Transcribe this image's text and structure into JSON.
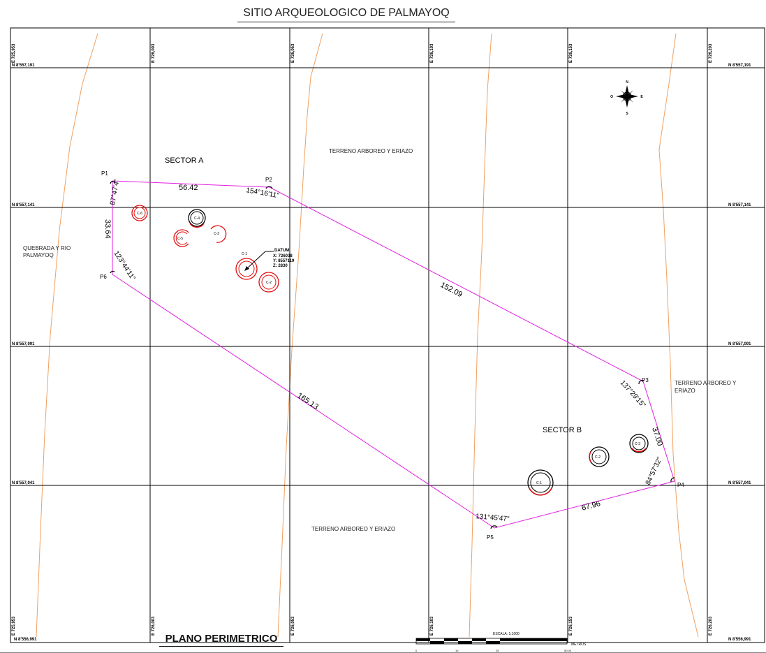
{
  "title": "SITIO ARQUEOLOGICO DE PALMAYOQ",
  "plano_title": "PLANO PERIMETRICO",
  "grid": {
    "easting_labels": [
      "E 725,953",
      "E 726,003",
      "E 726,053",
      "E 726,103",
      "E 726,153",
      "E 726,203"
    ],
    "northing_labels": [
      "N 8'557,191",
      "N 8'557,141",
      "N 8'557,091",
      "N 8'557,041",
      "N 8'556,991"
    ]
  },
  "sectors": {
    "a": "SECTOR A",
    "b": "SECTOR B"
  },
  "areas": {
    "terreno_top": "TERRENO ARBOREO Y ERIAZO",
    "terreno_right_line1": "TERRENO ARBOREO Y",
    "terreno_right_line2": "ERIAZO",
    "terreno_bottom": "TERRENO ARBOREO Y ERIAZO",
    "quebrada_line1": "QUEBRADA Y RIO",
    "quebrada_line2": "PALMAYOQ"
  },
  "vertices": {
    "p1": "P1",
    "p2": "P2",
    "p3": "P3",
    "p4": "P4",
    "p5": "P5",
    "p6": "P6"
  },
  "distances": {
    "p1_p2": "56.42",
    "p2_p3": "152.09",
    "p3_p4": "37.00",
    "p4_p5": "67.96",
    "p5_p6": "165.13",
    "p6_p1": "33.64"
  },
  "angles": {
    "p1": "87°47'4\"",
    "p2": "154°16'11\"",
    "p3": "137°29'15\"",
    "p4": "84°57'32\"",
    "p5": "131°45'47\"",
    "p6": "123°44'11\""
  },
  "circles_a": [
    "C-1",
    "C-2",
    "C-3",
    "C-4",
    "C-5",
    "C-6"
  ],
  "circles_b": [
    "C-1",
    "C-2",
    "C-3"
  ],
  "datum": {
    "label": "DATUM",
    "x": "X: 726038",
    "y": "Y: 8557119",
    "z": "Z: 2830"
  },
  "compass": {
    "n": "N",
    "s": "S",
    "e": "E",
    "o": "O"
  },
  "scale": {
    "label": "ESCALA: 1:1000",
    "units": "METROS",
    "ticks": [
      "0",
      "10",
      "25",
      "50.00"
    ]
  },
  "colors": {
    "perimeter": "#e020e0",
    "contour": "#f0a060",
    "circle_red": "#e01010",
    "grid": "#000000"
  }
}
